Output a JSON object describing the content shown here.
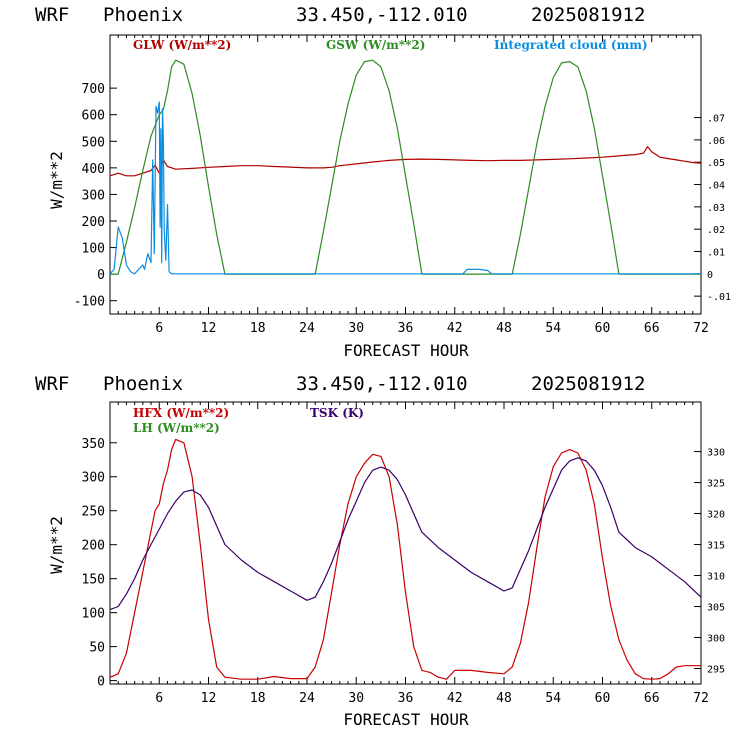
{
  "chart_data": [
    {
      "type": "line",
      "header": {
        "model": "WRF",
        "location": "Phoenix",
        "coords": "33.450,-112.010",
        "run": "2025081912"
      },
      "xlabel": "FORECAST HOUR",
      "ylabel": "W/m**2",
      "xlim": [
        0,
        72
      ],
      "ylim": [
        -150,
        900
      ],
      "y2lim": [
        -0.018,
        0.107
      ],
      "xticks": [
        "6",
        "12",
        "18",
        "24",
        "30",
        "36",
        "42",
        "48",
        "54",
        "60",
        "66",
        "72"
      ],
      "yticks": [
        "-100",
        "0",
        "100",
        "200",
        "300",
        "400",
        "500",
        "600",
        "700"
      ],
      "y2ticks": [
        "-.01",
        "0",
        ".01",
        ".02",
        ".03",
        ".04",
        ".05",
        ".06",
        ".07"
      ],
      "colors": {
        "glw": "#b00000",
        "gsw": "#2e8b22",
        "cloud": "#0a8ce0"
      },
      "series": [
        {
          "name": "GLW (W/m**2)",
          "axis": "left",
          "x": [
            0,
            1,
            2,
            3,
            4,
            5,
            5.5,
            6,
            6.5,
            7,
            8,
            10,
            12,
            14,
            16,
            18,
            20,
            22,
            24,
            25,
            26,
            27,
            28,
            30,
            32,
            34,
            36,
            38,
            40,
            42,
            44,
            46,
            48,
            50,
            52,
            54,
            56,
            58,
            60,
            62,
            63,
            64,
            65,
            65.5,
            66,
            67,
            68,
            69,
            70,
            71,
            72
          ],
          "y": [
            370,
            380,
            370,
            370,
            380,
            390,
            410,
            380,
            430,
            405,
            395,
            398,
            402,
            405,
            408,
            408,
            405,
            403,
            400,
            400,
            400,
            402,
            408,
            415,
            422,
            428,
            432,
            433,
            432,
            430,
            428,
            427,
            428,
            428,
            430,
            432,
            434,
            437,
            440,
            445,
            448,
            450,
            455,
            480,
            460,
            440,
            435,
            430,
            425,
            420,
            418
          ]
        },
        {
          "name": "GSW (W/m**2)",
          "axis": "left",
          "x": [
            0,
            1,
            2,
            3,
            4,
            5,
            6,
            6.5,
            7,
            7.5,
            8,
            9,
            10,
            11,
            12,
            13,
            14,
            24,
            25,
            26,
            27,
            28,
            29,
            30,
            31,
            32,
            33,
            34,
            35,
            36,
            37,
            38,
            48,
            49,
            50,
            51,
            52,
            53,
            54,
            55,
            56,
            57,
            58,
            59,
            60,
            61,
            62,
            72
          ],
          "y": [
            0,
            0,
            120,
            250,
            390,
            520,
            600,
            620,
            690,
            780,
            805,
            790,
            680,
            520,
            330,
            150,
            0,
            0,
            0,
            160,
            330,
            500,
            640,
            750,
            800,
            805,
            780,
            690,
            550,
            370,
            190,
            0,
            0,
            0,
            150,
            320,
            490,
            630,
            740,
            795,
            800,
            780,
            690,
            550,
            370,
            190,
            0,
            0
          ]
        },
        {
          "name": "Integrated cloud (mm)",
          "axis": "right",
          "x": [
            0,
            0.5,
            1,
            1.5,
            2,
            2.5,
            3,
            3.5,
            4,
            4.2,
            4.6,
            5,
            5.2,
            5.4,
            5.6,
            5.8,
            6,
            6.1,
            6.2,
            6.3,
            6.4,
            6.5,
            6.6,
            6.8,
            7,
            7.2,
            7.5,
            8,
            12,
            20,
            30,
            40,
            43,
            43.5,
            44,
            45,
            46,
            46.5,
            50,
            60,
            72
          ],
          "y": [
            0,
            0.002,
            0.021,
            0.016,
            0.004,
            0.001,
            0,
            0.002,
            0.004,
            0.002,
            0.009,
            0.005,
            0.051,
            0.009,
            0.075,
            0.072,
            0.077,
            0.021,
            0.065,
            0.005,
            0.074,
            0.06,
            0.02,
            0.006,
            0.031,
            0.001,
            0,
            0,
            0,
            0,
            0,
            0,
            0,
            0.002,
            0.002,
            0.002,
            0.0015,
            0,
            0,
            0,
            0
          ]
        }
      ]
    },
    {
      "type": "line",
      "header": {
        "model": "WRF",
        "location": "Phoenix",
        "coords": "33.450,-112.010",
        "run": "2025081912"
      },
      "xlabel": "FORECAST HOUR",
      "ylabel": "W/m**2",
      "xlim": [
        0,
        72
      ],
      "ylim": [
        -5,
        410
      ],
      "y2lim": [
        292.5,
        338
      ],
      "xticks": [
        "6",
        "12",
        "18",
        "24",
        "30",
        "36",
        "42",
        "48",
        "54",
        "60",
        "66",
        "72"
      ],
      "yticks": [
        "0",
        "50",
        "100",
        "150",
        "200",
        "250",
        "300",
        "350"
      ],
      "y2ticks": [
        "295",
        "300",
        "305",
        "310",
        "315",
        "320",
        "325",
        "330"
      ],
      "colors": {
        "hfx": "#c80000",
        "lh": "#2e8b22",
        "tsk": "#3a006a"
      },
      "series": [
        {
          "name": "HFX (W/m**2)",
          "axis": "left",
          "x": [
            0,
            1,
            2,
            3,
            4,
            5,
            5.5,
            6,
            6.5,
            7,
            7.5,
            8,
            9,
            10,
            11,
            12,
            13,
            14,
            16,
            18,
            20,
            22,
            24,
            25,
            26,
            27,
            28,
            29,
            30,
            31,
            32,
            33,
            34,
            35,
            36,
            37,
            38,
            39,
            40,
            41,
            42,
            44,
            46,
            48,
            49,
            50,
            51,
            52,
            53,
            54,
            55,
            56,
            57,
            58,
            59,
            60,
            61,
            62,
            63,
            64,
            65,
            66,
            67,
            68,
            69,
            70,
            72
          ],
          "y": [
            5,
            10,
            40,
            100,
            160,
            220,
            250,
            260,
            290,
            310,
            340,
            355,
            350,
            300,
            200,
            90,
            20,
            5,
            2,
            2,
            6,
            3,
            3,
            20,
            60,
            130,
            200,
            260,
            300,
            320,
            333,
            330,
            300,
            230,
            130,
            50,
            15,
            12,
            5,
            2,
            15,
            15,
            12,
            10,
            20,
            55,
            115,
            195,
            270,
            315,
            335,
            340,
            335,
            310,
            260,
            180,
            110,
            60,
            30,
            10,
            3,
            2,
            3,
            10,
            20,
            22,
            22
          ]
        },
        {
          "name": "LH  (W/m**2)",
          "axis": "left",
          "x": [],
          "y": []
        },
        {
          "name": "TSK (K)",
          "axis": "right",
          "x": [
            0,
            1,
            2,
            3,
            4,
            5,
            6,
            7,
            8,
            9,
            10,
            11,
            12,
            13,
            14,
            16,
            18,
            20,
            22,
            24,
            25,
            26,
            27,
            28,
            29,
            30,
            31,
            32,
            33,
            34,
            35,
            36,
            37,
            38,
            40,
            42,
            44,
            46,
            48,
            49,
            50,
            51,
            52,
            53,
            54,
            55,
            56,
            57,
            58,
            59,
            60,
            61,
            62,
            64,
            66,
            68,
            70,
            72
          ],
          "y": [
            304.5,
            305,
            307,
            309.5,
            312.5,
            315,
            317.5,
            320,
            322,
            323.5,
            323.8,
            323,
            321,
            318,
            315,
            312.5,
            310.5,
            309,
            307.5,
            306,
            306.5,
            309,
            312,
            315.5,
            319,
            322,
            325,
            327,
            327.5,
            327,
            325.5,
            323,
            320,
            317,
            314.5,
            312.5,
            310.5,
            309,
            307.5,
            308,
            311,
            314,
            317.5,
            321,
            324,
            327,
            328.5,
            329,
            328.5,
            327,
            324.5,
            321,
            317,
            314.5,
            313,
            311,
            309,
            306.5
          ]
        }
      ]
    }
  ]
}
